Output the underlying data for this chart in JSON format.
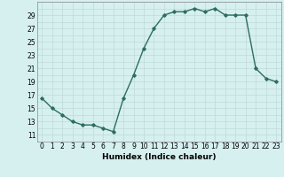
{
  "x": [
    0,
    1,
    2,
    3,
    4,
    5,
    6,
    7,
    8,
    9,
    10,
    11,
    12,
    13,
    14,
    15,
    16,
    17,
    18,
    19,
    20,
    21,
    22,
    23
  ],
  "y": [
    16.5,
    15,
    14,
    13,
    12.5,
    12.5,
    12,
    11.5,
    16.5,
    20,
    24,
    27,
    29,
    29.5,
    29.5,
    30,
    29.5,
    30,
    29,
    29,
    29,
    21,
    19.5,
    19
  ],
  "xlabel": "Humidex (Indice chaleur)",
  "xlim": [
    -0.5,
    23.5
  ],
  "ylim": [
    10,
    31
  ],
  "yticks": [
    11,
    13,
    15,
    17,
    19,
    21,
    23,
    25,
    27,
    29
  ],
  "xticks": [
    0,
    1,
    2,
    3,
    4,
    5,
    6,
    7,
    8,
    9,
    10,
    11,
    12,
    13,
    14,
    15,
    16,
    17,
    18,
    19,
    20,
    21,
    22,
    23
  ],
  "line_color": "#2d6e5e",
  "marker": "D",
  "marker_size": 1.8,
  "bg_color": "#d6f0f0",
  "grid_color": "#c0d8d8",
  "xlabel_fontsize": 6.5,
  "tick_fontsize": 5.5,
  "line_width": 1.0
}
